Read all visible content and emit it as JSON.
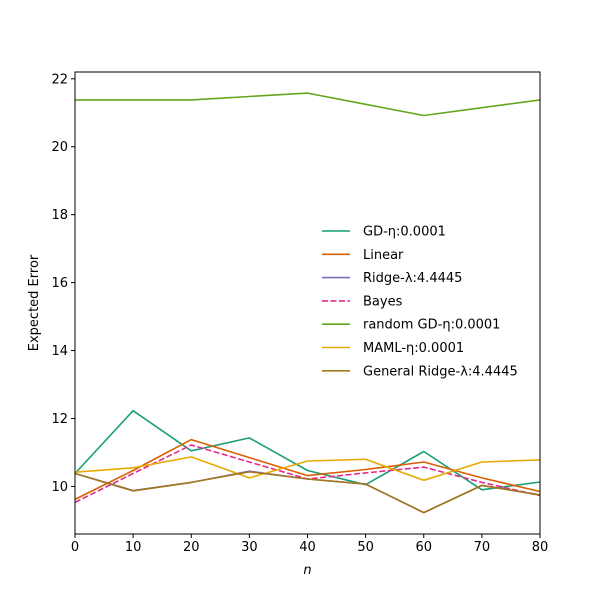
{
  "chart_data": {
    "type": "line",
    "title": "",
    "xlabel": "n",
    "ylabel": "Expected Error",
    "xlim": [
      0,
      80
    ],
    "ylim": [
      8.6,
      22.2
    ],
    "xticks": [
      0,
      10,
      20,
      30,
      40,
      50,
      60,
      70,
      80
    ],
    "yticks": [
      10,
      12,
      14,
      16,
      18,
      20,
      22
    ],
    "grid": false,
    "legend_position": "center-right",
    "x": [
      0,
      10,
      20,
      30,
      40,
      50,
      60,
      70,
      80
    ],
    "series": [
      {
        "name": "GD-η:0.0001",
        "color": "#1b9e77",
        "dash": "solid",
        "values": [
          10.38,
          12.23,
          11.05,
          11.43,
          10.47,
          10.05,
          11.03,
          9.9,
          10.13
        ]
      },
      {
        "name": "Linear",
        "color": "#d95f02",
        "dash": "solid",
        "values": [
          9.62,
          10.47,
          11.38,
          10.85,
          10.32,
          10.5,
          10.72,
          10.25,
          9.85
        ]
      },
      {
        "name": "Ridge-λ:4.4445",
        "color": "#7570b3",
        "dash": "solid",
        "values": [
          10.38,
          9.88,
          10.12,
          10.45,
          10.22,
          10.07,
          9.23,
          10.03,
          9.75
        ]
      },
      {
        "name": "Bayes",
        "color": "#e7298a",
        "dash": "dashed",
        "values": [
          9.53,
          10.38,
          11.22,
          10.72,
          10.22,
          10.4,
          10.57,
          10.12,
          9.73
        ]
      },
      {
        "name": "random GD-η:0.0001",
        "color": "#66a61e",
        "dash": "solid",
        "values": [
          21.38,
          21.38,
          21.38,
          21.48,
          21.58,
          21.25,
          20.92,
          21.15,
          21.38
        ]
      },
      {
        "name": "MAML-η:0.0001",
        "color": "#e6ab02",
        "dash": "solid",
        "values": [
          10.42,
          10.55,
          10.87,
          10.25,
          10.75,
          10.8,
          10.18,
          10.72,
          10.78
        ]
      },
      {
        "name": "General Ridge-λ:4.4445",
        "color": "#a6761d",
        "dash": "solid",
        "values": [
          10.38,
          9.87,
          10.12,
          10.43,
          10.22,
          10.07,
          9.23,
          10.03,
          9.75
        ]
      }
    ]
  }
}
